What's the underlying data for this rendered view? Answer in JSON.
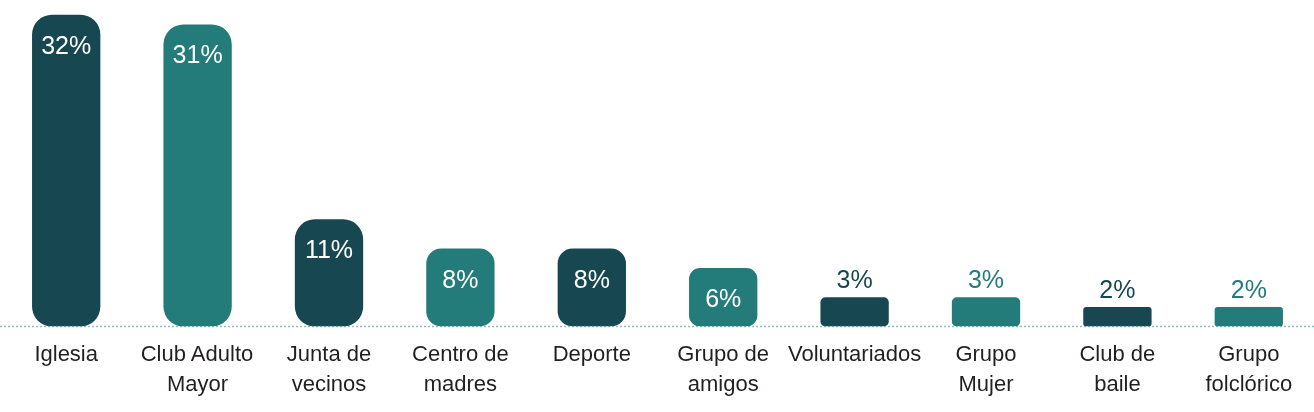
{
  "chart_data": {
    "type": "bar",
    "categories": [
      "Iglesia",
      "Club Adulto Mayor",
      "Junta de vecinos",
      "Centro de madres",
      "Deporte",
      "Grupo de amigos",
      "Voluntariados",
      "Grupo Mujer",
      "Club de baile",
      "Grupo folclórico"
    ],
    "values": [
      32,
      31,
      11,
      8,
      8,
      6,
      3,
      3,
      2,
      2
    ],
    "colors": [
      "#174852",
      "#237b7a",
      "#174852",
      "#237b7a",
      "#174852",
      "#237b7a",
      "#174852",
      "#237b7a",
      "#174852",
      "#237b7a"
    ],
    "value_labels": [
      "32%",
      "31%",
      "11%",
      "8%",
      "8%",
      "6%",
      "3%",
      "3%",
      "2%",
      "2%"
    ],
    "tick_labels": "x"
  }
}
